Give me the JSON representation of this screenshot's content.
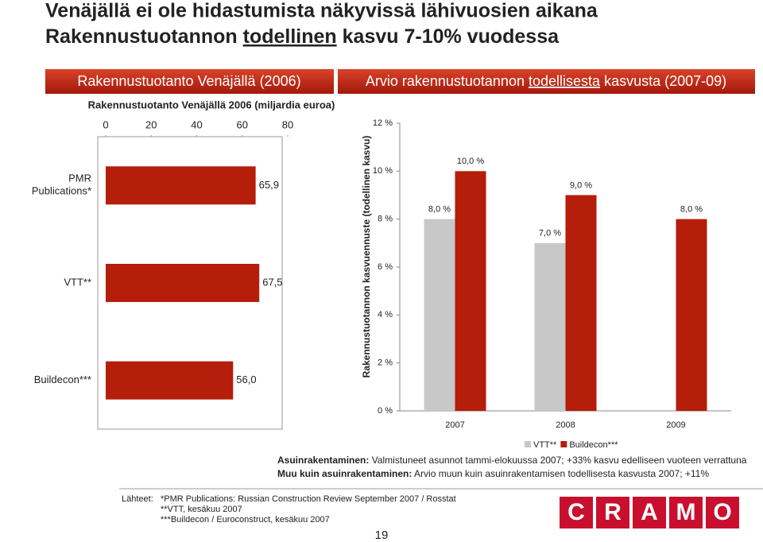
{
  "title_lines": [
    [
      "Venäjällä ei ole hidastumista näkyvissä lähivuosien aikana"
    ],
    [
      "Rakennustuotannon",
      "todellinen",
      "kasvu 7-10% vuodessa"
    ]
  ],
  "chart_data": [
    {
      "type": "hbar",
      "header": "Rakennustuotanto Venäjällä (2006)",
      "title": "Rakennustuotanto Venäjällä 2006 (miljardia euroa)",
      "categories": [
        "PMR Publications*",
        "VTT**",
        "Buildecon***"
      ],
      "values": [
        65.9,
        67.5,
        56.0
      ],
      "value_labels": [
        "65,9",
        "67,5",
        "56,0"
      ],
      "color": "#b41e0a",
      "xlim": [
        0,
        80
      ],
      "xticks": [
        0,
        20,
        40,
        60,
        80
      ]
    },
    {
      "type": "bar",
      "header": [
        "Arvio rakennustuotannon",
        "todellisesta",
        "kasvusta (2007-09)"
      ],
      "y_label": "Rakennustuotannon kasvuennuste (todellinen kasvu)",
      "categories": [
        "2007",
        "2008",
        "2009"
      ],
      "series": [
        {
          "name": "VTT**",
          "color": "#c8c8c8",
          "values": [
            8.0,
            7.0,
            null
          ],
          "value_labels": [
            "8,0 %",
            "7,0 %",
            null
          ]
        },
        {
          "name": "Buildecon***",
          "color": "#b41e0a",
          "values": [
            10.0,
            9.0,
            8.0
          ],
          "value_labels": [
            "10,0 %",
            "9,0 %",
            "8,0 %"
          ]
        }
      ],
      "ylim": [
        0,
        12
      ],
      "yticks": [
        {
          "value": 0,
          "label": "0 %"
        },
        {
          "value": 2,
          "label": "2 %"
        },
        {
          "value": 4,
          "label": "4 %"
        },
        {
          "value": 6,
          "label": "6 %"
        },
        {
          "value": 8,
          "label": "8 %"
        },
        {
          "value": 10,
          "label": "10 %"
        },
        {
          "value": 12,
          "label": "12 %"
        }
      ]
    }
  ],
  "notes": [
    [
      "Asuinrakentaminen:",
      "Valmistuneet asunnot tammi-elokuussa 2007; +33% kasvu edelliseen vuoteen verrattuna"
    ],
    [
      "Muu kuin asuinrakentaminen:",
      "Arvio muun kuin asuinrakentamisen todellisesta kasvusta 2007; +11%"
    ]
  ],
  "sources": {
    "label": "Lähteet:",
    "lines": [
      "*PMR Publications: Russian Construction Review September 2007 / Rosstat",
      "**VTT, kesäkuu 2007",
      "***Buildecon / Euroconstruct, kesäkuu 2007"
    ]
  },
  "page_number": "19",
  "logo": [
    "C",
    "R",
    "A",
    "M",
    "O"
  ]
}
